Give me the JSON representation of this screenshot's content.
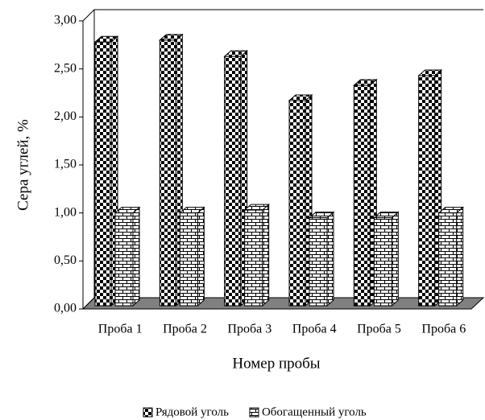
{
  "chart_data": {
    "type": "bar3d",
    "y_label": "Сера углей, %",
    "x_label": "Номер пробы",
    "categories": [
      "Проба 1",
      "Проба 2",
      "Проба 3",
      "Проба 4",
      "Проба 5",
      "Проба 6"
    ],
    "series": [
      {
        "name": "Рядовой уголь",
        "color": "#000000",
        "values": [
          2.78,
          2.8,
          2.63,
          2.17,
          2.33,
          2.43
        ]
      },
      {
        "name": "Обогащенный уголь",
        "color": "#000000",
        "values": [
          1.0,
          1.0,
          1.03,
          0.95,
          0.95,
          1.0
        ]
      }
    ],
    "ylim": [
      0,
      3
    ],
    "yticks": [
      {
        "value": 0,
        "label": "0,00"
      },
      {
        "value": 0.5,
        "label": "0,50"
      },
      {
        "value": 1,
        "label": "1,00"
      },
      {
        "value": 1.5,
        "label": "1,50"
      },
      {
        "value": 2,
        "label": "2,00"
      },
      {
        "value": 2.5,
        "label": "2,50"
      },
      {
        "value": 3,
        "label": "3,00"
      }
    ],
    "legend": "bottom"
  }
}
